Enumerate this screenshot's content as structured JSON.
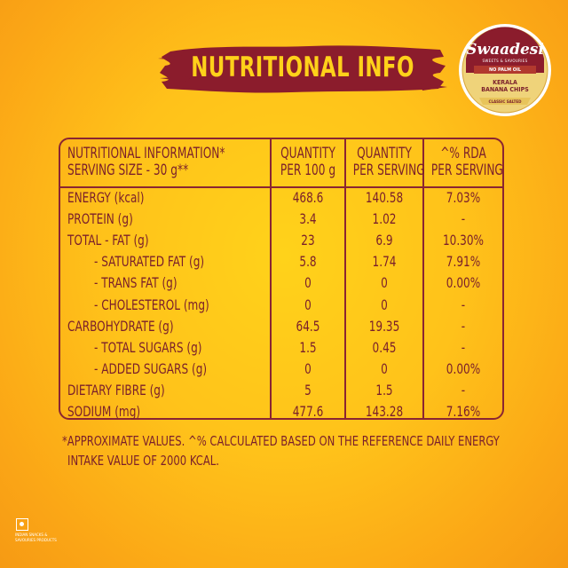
{
  "title": "NUTRITIONAL INFO",
  "badge": {
    "brand": "Swaadesi",
    "tagline": "SWEETS & SAVOURIES",
    "claim": "NO PALM OIL",
    "product_line1": "KERALA",
    "product_line2": "BANANA CHIPS",
    "variant": "CLASSIC SALTED"
  },
  "table": {
    "headers": {
      "c1_line1": "NUTRITIONAL INFORMATION*",
      "c1_line2": "SERVING SIZE - 30 g**",
      "c2_line1": "QUANTITY",
      "c2_line2": "PER 100 g",
      "c3_line1": "QUANTITY",
      "c3_line2": "PER SERVING",
      "c4_line1": "^% RDA",
      "c4_line2": "PER SERVING"
    },
    "rows": [
      {
        "name": "ENERGY (kcal)",
        "per100": "468.6",
        "perServing": "140.58",
        "rda": "7.03%"
      },
      {
        "name": "PROTEIN (g)",
        "per100": "3.4",
        "perServing": "1.02",
        "rda": "-"
      },
      {
        "name": "TOTAL - FAT  (g)",
        "per100": "23",
        "perServing": "6.9",
        "rda": "10.30%"
      },
      {
        "name": "- SATURATED FAT (g)",
        "per100": "5.8",
        "perServing": "1.74",
        "rda": "7.91%"
      },
      {
        "name": "- TRANS FAT (g)",
        "per100": "0",
        "perServing": "0",
        "rda": "0.00%"
      },
      {
        "name": "- CHOLESTEROL (mg)",
        "per100": "0",
        "perServing": "0",
        "rda": "-"
      },
      {
        "name": "CARBOHYDRATE (g)",
        "per100": "64.5",
        "perServing": "19.35",
        "rda": "-"
      },
      {
        "name": "- TOTAL SUGARS (g)",
        "per100": "1.5",
        "perServing": "0.45",
        "rda": "-"
      },
      {
        "name": "- ADDED SUGARS (g)",
        "per100": "0",
        "perServing": "0",
        "rda": "0.00%"
      },
      {
        "name": "DIETARY FIBRE (g)",
        "per100": "5",
        "perServing": "1.5",
        "rda": "-"
      },
      {
        "name": "SODIUM (mg)",
        "per100": "477.6",
        "perServing": "143.28",
        "rda": "7.16%"
      }
    ]
  },
  "footnote_line1": "*APPROXIMATE VALUES. ^% CALCULATED BASED ON THE REFERENCE DAILY ENERGY",
  "footnote_line2": "INTAKE VALUE OF 2000 KCAL.",
  "veg_mark_text_line1": "INDIAN SNACKS &",
  "veg_mark_text_line2": "SAVOURIES PRODUCTS"
}
